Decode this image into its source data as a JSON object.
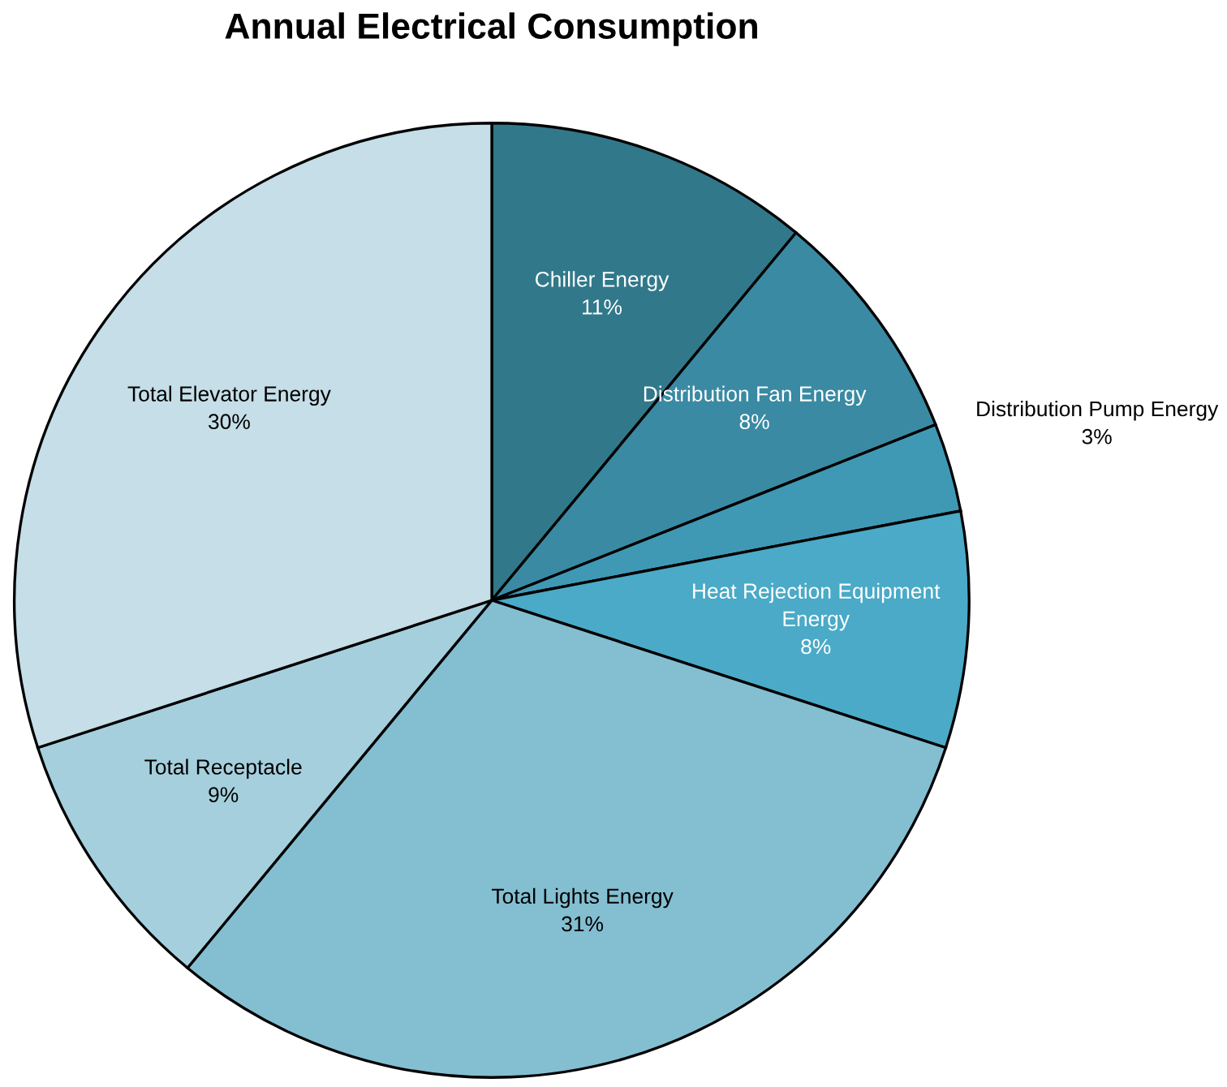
{
  "chart_data": {
    "type": "pie",
    "title": "Annual Electrical Consumption",
    "categories": [
      "Chiller Energy",
      "Distribution Fan Energy",
      "Distribution Pump Energy",
      "Heat Rejection Equipment Energy",
      "Total Lights Energy",
      "Total Receptacle",
      "Total Elevator Energy"
    ],
    "values": [
      11,
      8,
      3,
      8,
      31,
      9,
      30
    ],
    "colors": [
      "#31788a",
      "#3a8aa3",
      "#3f99b5",
      "#4aaac7",
      "#84bed1",
      "#a5cfdd",
      "#c5dee7"
    ],
    "value_labels": [
      "11%",
      "8%",
      "3%",
      "8%",
      "31%",
      "9%",
      "30%"
    ],
    "legend": false
  }
}
